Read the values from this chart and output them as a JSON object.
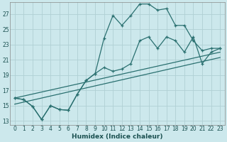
{
  "bg_color": "#cce8ec",
  "grid_color": "#b0d0d4",
  "line_color": "#2a7070",
  "xlabel": "Humidex (Indice chaleur)",
  "xlim": [
    -0.5,
    23.5
  ],
  "ylim": [
    12.5,
    28.5
  ],
  "xticks": [
    0,
    1,
    2,
    3,
    4,
    5,
    6,
    7,
    8,
    9,
    10,
    11,
    12,
    13,
    14,
    15,
    16,
    17,
    18,
    19,
    20,
    21,
    22,
    23
  ],
  "yticks": [
    13,
    15,
    17,
    19,
    21,
    23,
    25,
    27
  ],
  "series1_x": [
    0,
    1,
    2,
    3,
    4,
    5,
    6,
    7,
    8,
    9,
    10,
    11,
    12,
    13,
    14,
    15,
    16,
    17,
    18,
    19,
    20,
    21,
    22,
    23
  ],
  "series1_y": [
    16.0,
    15.8,
    14.9,
    13.2,
    15.0,
    14.5,
    14.4,
    16.5,
    18.3,
    19.2,
    23.8,
    26.8,
    25.5,
    26.8,
    28.3,
    28.3,
    27.5,
    27.7,
    25.5,
    25.5,
    23.5,
    22.2,
    22.5,
    22.5
  ],
  "series2_x": [
    0,
    1,
    2,
    3,
    4,
    5,
    6,
    7,
    8,
    9,
    10,
    11,
    12,
    13,
    14,
    15,
    16,
    17,
    18,
    19,
    20,
    21,
    22,
    23
  ],
  "series2_y": [
    16.0,
    15.8,
    14.9,
    13.2,
    15.0,
    14.5,
    14.4,
    16.5,
    18.3,
    19.2,
    20.0,
    19.5,
    19.8,
    20.5,
    23.5,
    24.0,
    22.5,
    24.0,
    23.5,
    22.0,
    24.0,
    20.5,
    22.0,
    22.5
  ],
  "series3_x": [
    0,
    23
  ],
  "series3_y": [
    16.0,
    22.0
  ],
  "series4_x": [
    0,
    23
  ],
  "series4_y": [
    15.2,
    21.3
  ]
}
